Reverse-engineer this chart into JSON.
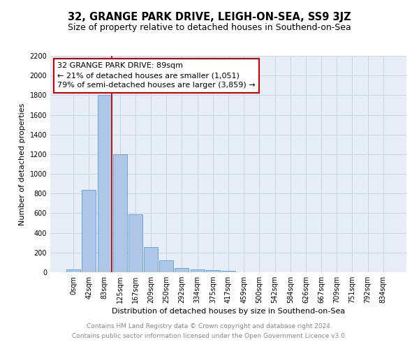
{
  "title": "32, GRANGE PARK DRIVE, LEIGH-ON-SEA, SS9 3JZ",
  "subtitle": "Size of property relative to detached houses in Southend-on-Sea",
  "xlabel": "Distribution of detached houses by size in Southend-on-Sea",
  "ylabel": "Number of detached properties",
  "footnote1": "Contains HM Land Registry data © Crown copyright and database right 2024.",
  "footnote2": "Contains public sector information licensed under the Open Government Licence v3.0.",
  "bar_labels": [
    "0sqm",
    "42sqm",
    "83sqm",
    "125sqm",
    "167sqm",
    "209sqm",
    "250sqm",
    "292sqm",
    "334sqm",
    "375sqm",
    "417sqm",
    "459sqm",
    "500sqm",
    "542sqm",
    "584sqm",
    "626sqm",
    "667sqm",
    "709sqm",
    "751sqm",
    "792sqm",
    "834sqm"
  ],
  "bar_values": [
    25,
    840,
    1800,
    1200,
    590,
    255,
    120,
    45,
    30,
    20,
    15,
    0,
    0,
    0,
    0,
    0,
    0,
    0,
    0,
    0,
    0
  ],
  "bar_color": "#aec6e8",
  "bar_edge_color": "#5a9fd4",
  "property_bin_index": 2,
  "annotation_line1": "32 GRANGE PARK DRIVE: 89sqm",
  "annotation_line2": "← 21% of detached houses are smaller (1,051)",
  "annotation_line3": "79% of semi-detached houses are larger (3,859) →",
  "vline_color": "#cc0000",
  "annotation_box_edge_color": "#cc0000",
  "grid_color": "#c8d4e8",
  "background_color": "#e8eef8",
  "ylim": [
    0,
    2200
  ],
  "yticks": [
    0,
    200,
    400,
    600,
    800,
    1000,
    1200,
    1400,
    1600,
    1800,
    2000,
    2200
  ],
  "title_fontsize": 10.5,
  "subtitle_fontsize": 9,
  "axis_label_fontsize": 8,
  "tick_fontsize": 7,
  "annotation_fontsize": 8,
  "footnote_fontsize": 6.5
}
